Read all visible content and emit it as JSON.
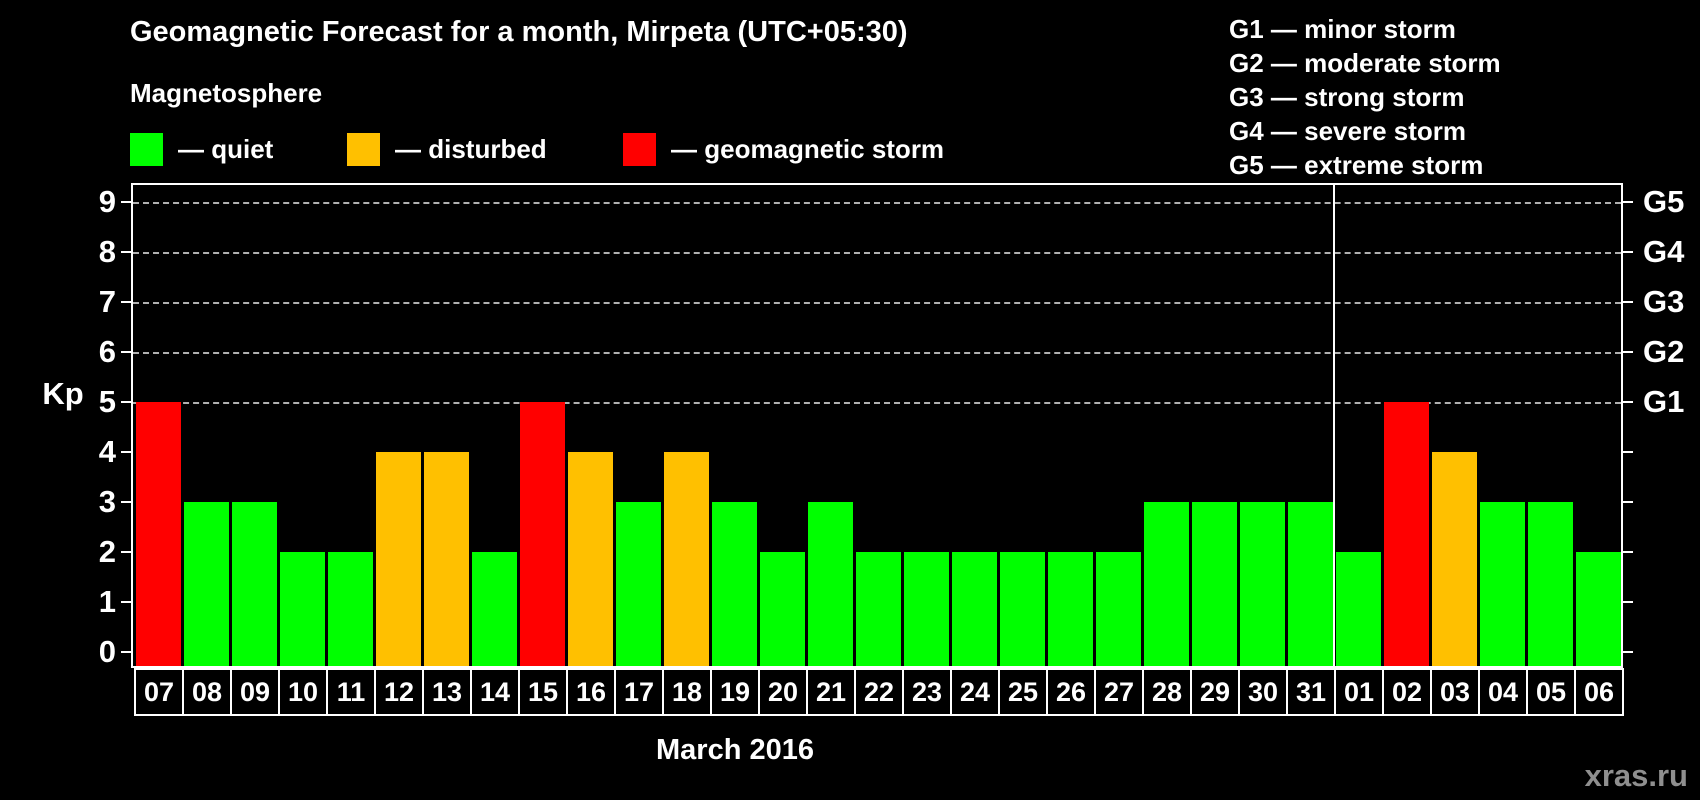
{
  "title": "Geomagnetic Forecast for a month, Mirpeta (UTC+05:30)",
  "watermark": "xras.ru",
  "colors": {
    "quiet": "#00ff00",
    "disturbed": "#ffc000",
    "storm": "#ff0000",
    "background": "#000000",
    "text": "#ffffff",
    "gridline": "#b0b0b0",
    "watermark": "#8f8f8f"
  },
  "legend": {
    "heading": "Magnetosphere",
    "items": [
      {
        "key": "quiet",
        "label": "— quiet"
      },
      {
        "key": "disturbed",
        "label": "— disturbed"
      },
      {
        "key": "storm",
        "label": "— geomagnetic storm"
      }
    ]
  },
  "g_legend": [
    "G1 — minor storm",
    "G2 — moderate storm",
    "G3 — strong storm",
    "G4 — severe storm",
    "G5 — extreme storm"
  ],
  "chart_data": {
    "type": "bar",
    "title": "Geomagnetic Forecast for a month, Mirpeta (UTC+05:30)",
    "categories": [
      "07",
      "08",
      "09",
      "10",
      "11",
      "12",
      "13",
      "14",
      "15",
      "16",
      "17",
      "18",
      "19",
      "20",
      "21",
      "22",
      "23",
      "24",
      "25",
      "26",
      "27",
      "28",
      "29",
      "30",
      "31",
      "01",
      "02",
      "03",
      "04",
      "05",
      "06"
    ],
    "values": [
      5,
      3,
      3,
      2,
      2,
      4,
      4,
      2,
      5,
      4,
      3,
      4,
      3,
      2,
      3,
      2,
      2,
      2,
      2,
      2,
      2,
      3,
      3,
      3,
      3,
      2,
      5,
      4,
      3,
      3,
      2
    ],
    "statuses": [
      "storm",
      "quiet",
      "quiet",
      "quiet",
      "quiet",
      "disturbed",
      "disturbed",
      "quiet",
      "storm",
      "disturbed",
      "quiet",
      "disturbed",
      "quiet",
      "quiet",
      "quiet",
      "quiet",
      "quiet",
      "quiet",
      "quiet",
      "quiet",
      "quiet",
      "quiet",
      "quiet",
      "quiet",
      "quiet",
      "quiet",
      "storm",
      "disturbed",
      "quiet",
      "quiet",
      "quiet"
    ],
    "xlabel": "March 2016",
    "ylabel": "Kp",
    "ylim": [
      0,
      9
    ],
    "y_ticks": [
      0,
      1,
      2,
      3,
      4,
      5,
      6,
      7,
      8,
      9
    ],
    "gridlines_at": [
      5,
      6,
      7,
      8,
      9
    ],
    "right_axis": [
      {
        "kp": 5,
        "label": "G1"
      },
      {
        "kp": 6,
        "label": "G2"
      },
      {
        "kp": 7,
        "label": "G3"
      },
      {
        "kp": 8,
        "label": "G4"
      },
      {
        "kp": 9,
        "label": "G5"
      }
    ],
    "month_divider_after": "31",
    "legend_position": "top",
    "grid": true
  }
}
